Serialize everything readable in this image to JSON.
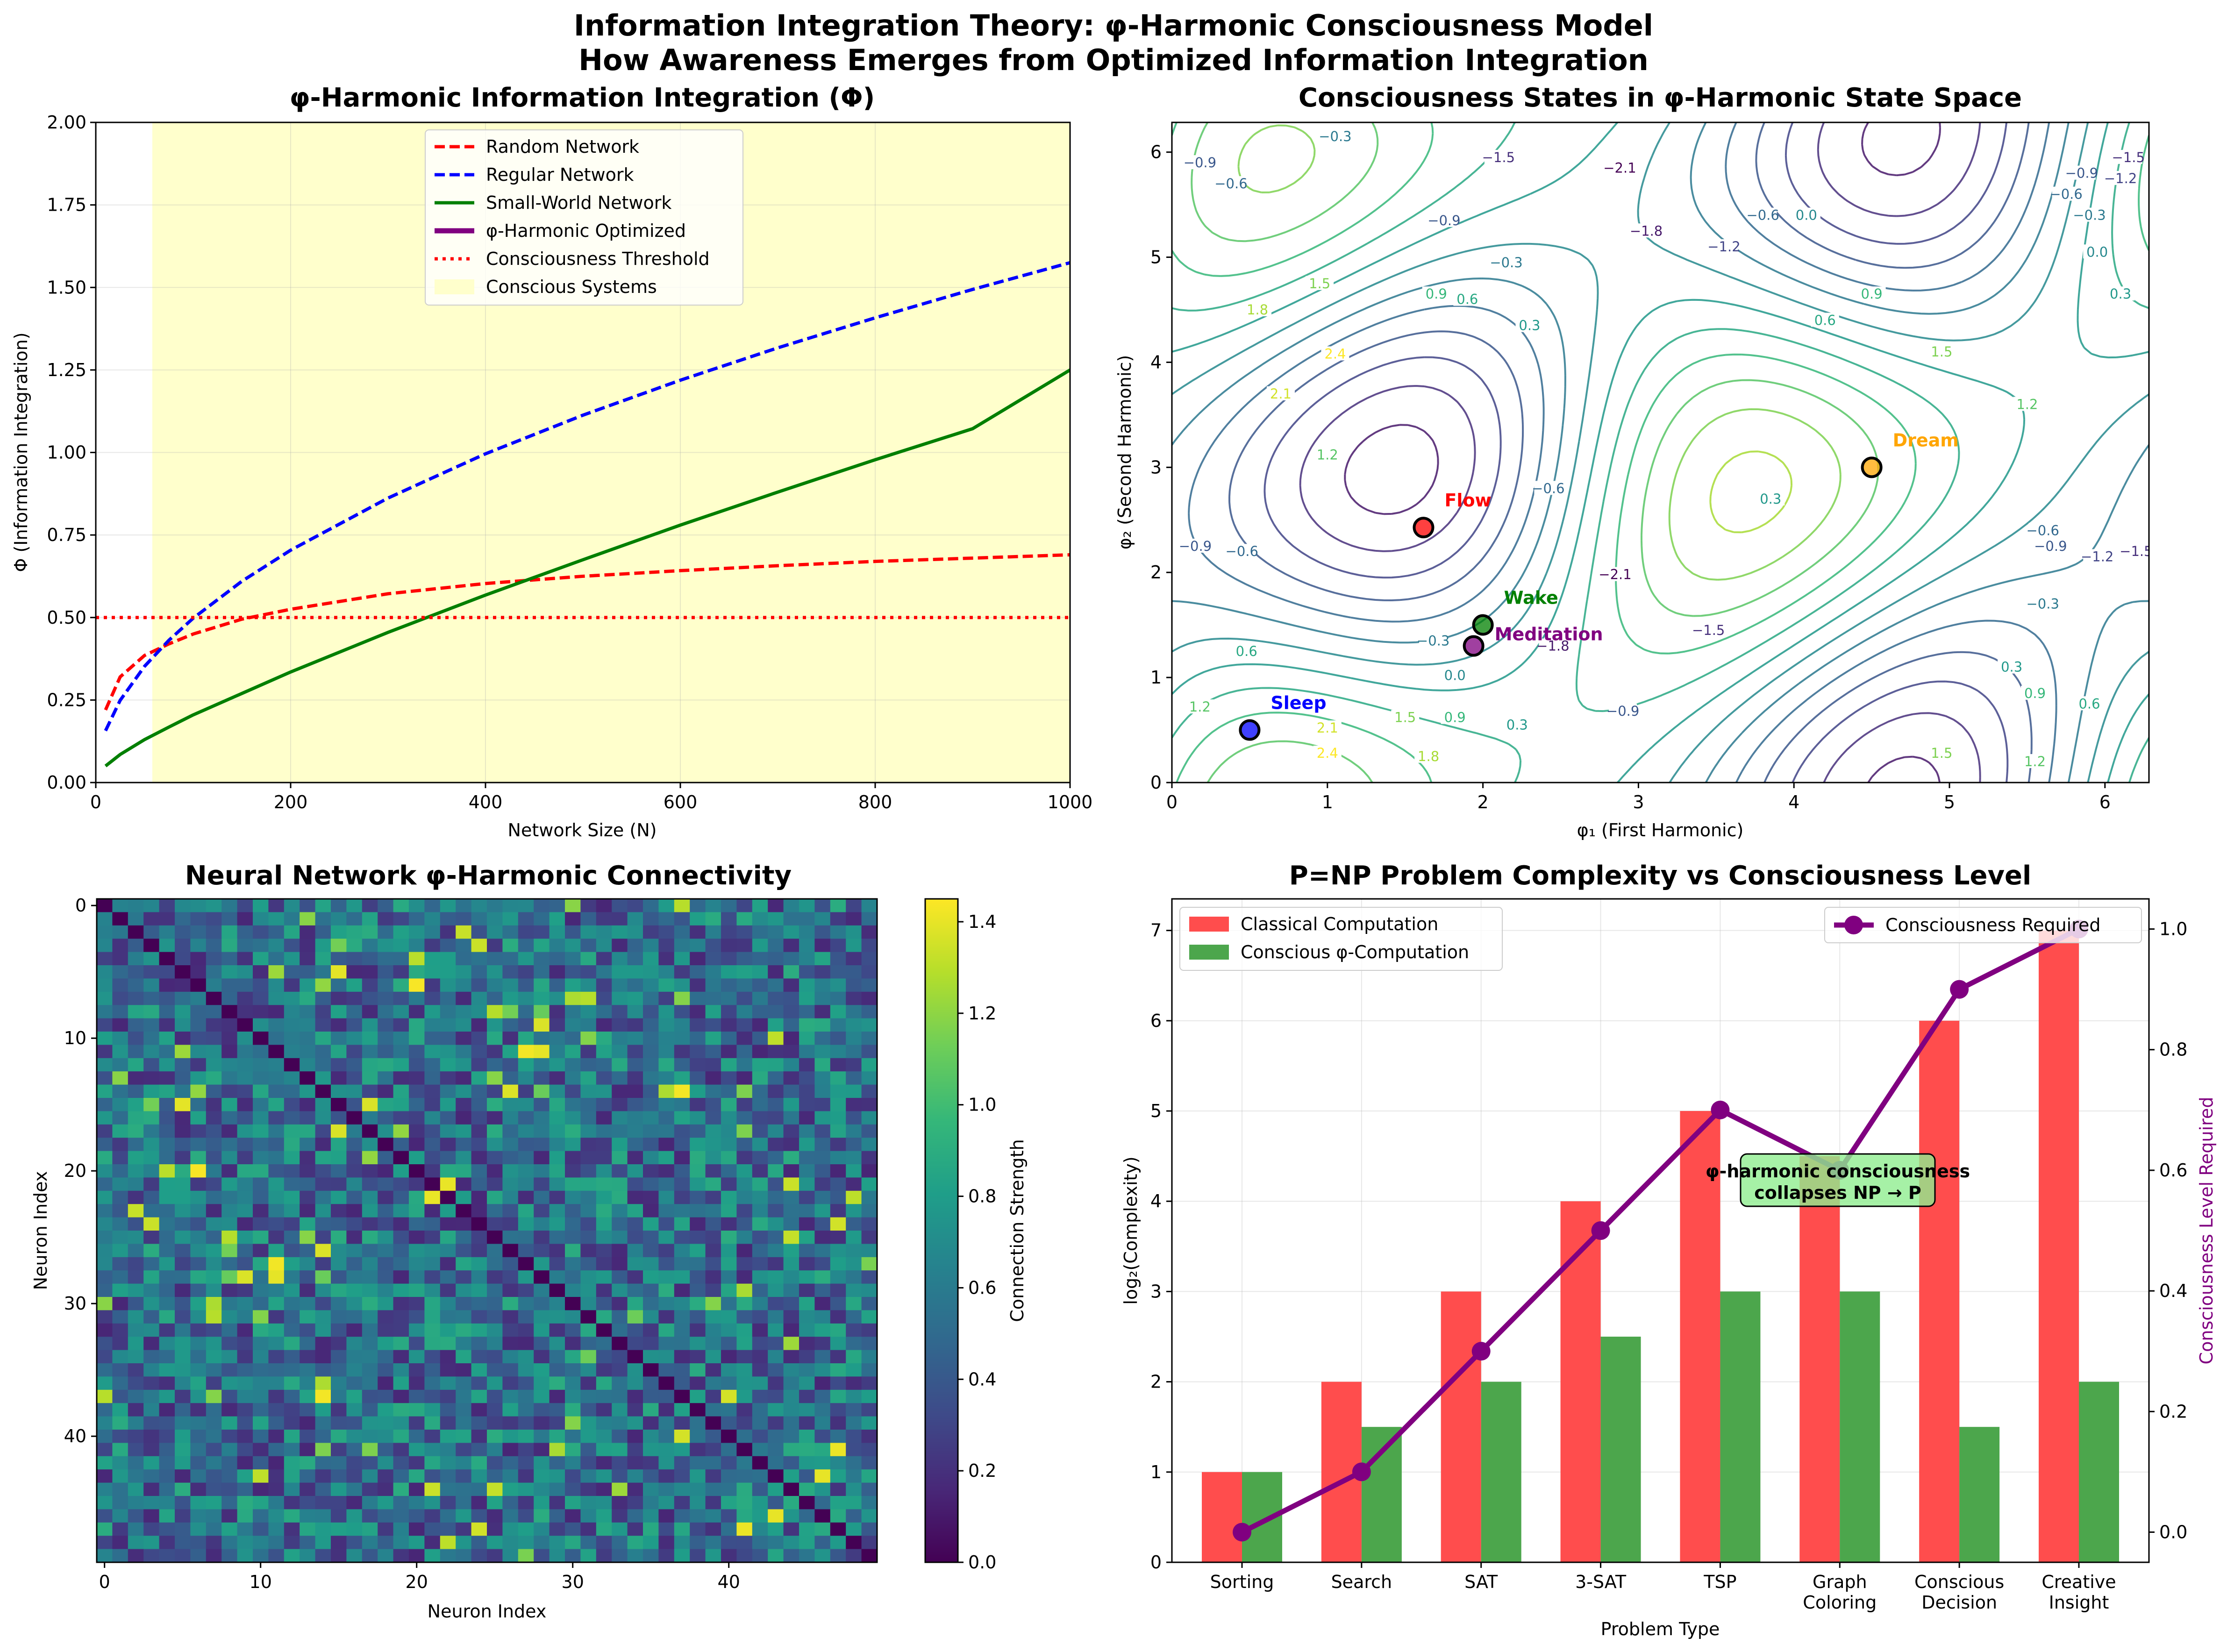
{
  "figure": {
    "title_line1": "Information Integration Theory: φ-Harmonic Consciousness Model",
    "title_line2": "How Awareness Emerges from Optimized Information Integration"
  },
  "chart_data": [
    {
      "type": "line",
      "title": "φ-Harmonic Information Integration (Φ)",
      "xlabel": "Network Size (N)",
      "ylabel": "Φ (Information Integration)",
      "xlim": [
        0,
        1000
      ],
      "ylim": [
        0,
        2.0
      ],
      "xticks": [
        "0",
        "200",
        "400",
        "600",
        "800",
        "1000"
      ],
      "yticks": [
        "0.00",
        "0.25",
        "0.50",
        "0.75",
        "1.00",
        "1.25",
        "1.50",
        "1.75",
        "2.00"
      ],
      "grid": true,
      "legend_position": "top-center",
      "shaded_region": {
        "label": "Conscious Systems",
        "x_from": 58,
        "x_to": 1000,
        "color": "#ffffcc"
      },
      "threshold": {
        "label": "Consciousness Threshold",
        "y": 0.5,
        "color": "#ff0000"
      },
      "series": [
        {
          "name": "Random Network",
          "color": "#ff0000",
          "style": "dashed",
          "x": [
            10,
            25,
            50,
            75,
            100,
            150,
            200,
            300,
            400,
            500,
            600,
            700,
            800,
            900,
            1000
          ],
          "y": [
            0.22,
            0.32,
            0.385,
            0.42,
            0.45,
            0.495,
            0.525,
            0.572,
            0.603,
            0.625,
            0.642,
            0.657,
            0.67,
            0.68,
            0.69
          ]
        },
        {
          "name": "Regular Network",
          "color": "#0000ff",
          "style": "dashed",
          "x": [
            10,
            25,
            50,
            75,
            100,
            150,
            200,
            300,
            400,
            500,
            600,
            700,
            800,
            900,
            1000
          ],
          "y": [
            0.157,
            0.249,
            0.352,
            0.431,
            0.498,
            0.61,
            0.704,
            0.862,
            0.996,
            1.113,
            1.219,
            1.317,
            1.408,
            1.494,
            1.575
          ]
        },
        {
          "name": "Small-World Network",
          "color": "#007f00",
          "style": "solid",
          "x": [
            10,
            25,
            50,
            75,
            100,
            150,
            200,
            300,
            400,
            500,
            600,
            700,
            800,
            900,
            1000
          ],
          "y": [
            0.05,
            0.085,
            0.13,
            0.168,
            0.205,
            0.27,
            0.335,
            0.455,
            0.568,
            0.675,
            0.78,
            0.88,
            0.978,
            1.072,
            1.25
          ]
        },
        {
          "name": "φ-Harmonic Optimized",
          "color": "#800080",
          "style": "solid",
          "x": [],
          "y": []
        }
      ]
    },
    {
      "type": "contour",
      "title": "Consciousness States in φ-Harmonic State Space",
      "xlabel": "φ₁ (First Harmonic)",
      "ylabel": "φ₂ (Second Harmonic)",
      "xlim": [
        0,
        6.283
      ],
      "ylim": [
        0,
        6.283
      ],
      "xticks": [
        "0",
        "1",
        "2",
        "3",
        "4",
        "5",
        "6"
      ],
      "yticks": [
        "0",
        "1",
        "2",
        "3",
        "4",
        "5",
        "6"
      ],
      "levels": [
        -2.1,
        -1.8,
        -1.5,
        -1.2,
        -0.9,
        -0.6,
        -0.3,
        0.0,
        0.3,
        0.6,
        0.9,
        1.2,
        1.5,
        1.8,
        2.1,
        2.4
      ],
      "contour_labels": [
        {
          "text": "−2.1",
          "x": 2.88,
          "y": 5.85
        },
        {
          "text": "−1.8",
          "x": 3.05,
          "y": 5.25
        },
        {
          "text": "−1.5",
          "x": 2.1,
          "y": 5.95
        },
        {
          "text": "−1.2",
          "x": 3.55,
          "y": 5.1
        },
        {
          "text": "−0.9",
          "x": 1.75,
          "y": 5.35
        },
        {
          "text": "−0.6",
          "x": 3.8,
          "y": 5.4
        },
        {
          "text": "−0.3",
          "x": 2.15,
          "y": 4.95
        },
        {
          "text": "0.0",
          "x": 4.08,
          "y": 5.4
        },
        {
          "text": "0.3",
          "x": 2.3,
          "y": 4.35
        },
        {
          "text": "0.6",
          "x": 1.9,
          "y": 4.6
        },
        {
          "text": "0.9",
          "x": 1.7,
          "y": 4.65
        },
        {
          "text": "1.2",
          "x": 1.0,
          "y": 3.12
        },
        {
          "text": "1.5",
          "x": 0.95,
          "y": 4.75
        },
        {
          "text": "1.8",
          "x": 0.55,
          "y": 4.5
        },
        {
          "text": "2.1",
          "x": 0.7,
          "y": 3.7
        },
        {
          "text": "2.4",
          "x": 1.05,
          "y": 4.08
        },
        {
          "text": "−0.9",
          "x": 0.18,
          "y": 5.9
        },
        {
          "text": "−0.6",
          "x": 0.38,
          "y": 5.7
        },
        {
          "text": "−0.3",
          "x": 1.05,
          "y": 6.15
        },
        {
          "text": "0.6",
          "x": 4.2,
          "y": 4.4
        },
        {
          "text": "0.9",
          "x": 4.5,
          "y": 4.65
        },
        {
          "text": "1.5",
          "x": 4.95,
          "y": 4.1
        },
        {
          "text": "1.2",
          "x": 5.5,
          "y": 3.6
        },
        {
          "text": "0.3",
          "x": 6.1,
          "y": 4.65
        },
        {
          "text": "0.0",
          "x": 5.95,
          "y": 5.05
        },
        {
          "text": "−0.3",
          "x": 5.9,
          "y": 5.4
        },
        {
          "text": "−0.6",
          "x": 5.75,
          "y": 5.6
        },
        {
          "text": "−0.9",
          "x": 5.85,
          "y": 5.8
        },
        {
          "text": "−1.2",
          "x": 6.1,
          "y": 5.75
        },
        {
          "text": "−1.5",
          "x": 6.15,
          "y": 5.95
        },
        {
          "text": "−0.6",
          "x": 2.42,
          "y": 2.8
        },
        {
          "text": "−2.1",
          "x": 2.85,
          "y": 1.98
        },
        {
          "text": "−1.8",
          "x": 2.45,
          "y": 1.3
        },
        {
          "text": "−1.5",
          "x": 3.45,
          "y": 1.45
        },
        {
          "text": "−0.9",
          "x": 2.9,
          "y": 0.68
        },
        {
          "text": "−0.3",
          "x": 1.68,
          "y": 1.35
        },
        {
          "text": "0.0",
          "x": 1.82,
          "y": 1.02
        },
        {
          "text": "0.3",
          "x": 2.22,
          "y": 0.55
        },
        {
          "text": "0.9",
          "x": 1.82,
          "y": 0.62
        },
        {
          "text": "0.6",
          "x": 0.48,
          "y": 1.25
        },
        {
          "text": "1.2",
          "x": 0.18,
          "y": 0.72
        },
        {
          "text": "1.5",
          "x": 1.5,
          "y": 0.62
        },
        {
          "text": "1.8",
          "x": 1.65,
          "y": 0.25
        },
        {
          "text": "2.1",
          "x": 1.0,
          "y": 0.52
        },
        {
          "text": "2.4",
          "x": 1.0,
          "y": 0.28
        },
        {
          "text": "0.3",
          "x": 3.85,
          "y": 2.7
        },
        {
          "text": "−0.9",
          "x": 0.15,
          "y": 2.25
        },
        {
          "text": "−0.6",
          "x": 0.45,
          "y": 2.2
        },
        {
          "text": "−0.9",
          "x": 5.65,
          "y": 2.25
        },
        {
          "text": "−1.2",
          "x": 5.95,
          "y": 2.15
        },
        {
          "text": "−0.6",
          "x": 5.6,
          "y": 2.4
        },
        {
          "text": "−0.3",
          "x": 5.6,
          "y": 1.7
        },
        {
          "text": "−1.5",
          "x": 6.2,
          "y": 2.2
        },
        {
          "text": "0.3",
          "x": 5.4,
          "y": 1.1
        },
        {
          "text": "0.6",
          "x": 5.9,
          "y": 0.75
        },
        {
          "text": "0.9",
          "x": 5.55,
          "y": 0.85
        },
        {
          "text": "1.5",
          "x": 4.95,
          "y": 0.28
        },
        {
          "text": "1.2",
          "x": 5.55,
          "y": 0.2
        }
      ],
      "points": [
        {
          "name": "Sleep",
          "x": 0.5,
          "y": 0.5,
          "color": "#0000ff"
        },
        {
          "name": "Flow",
          "x": 1.618,
          "y": 2.427,
          "color": "#ff0000"
        },
        {
          "name": "Wake",
          "x": 2.0,
          "y": 1.5,
          "color": "#008000"
        },
        {
          "name": "Meditation",
          "x": 1.94,
          "y": 1.3,
          "color": "#800080"
        },
        {
          "name": "Dream",
          "x": 4.5,
          "y": 3.0,
          "color": "#ffa500"
        }
      ]
    },
    {
      "type": "heatmap",
      "title": "Neural Network φ-Harmonic Connectivity",
      "xlabel": "Neuron Index",
      "ylabel": "Neuron Index",
      "size": 50,
      "colormap": "viridis",
      "vmin": 0.0,
      "vmax": 1.45,
      "xticks": [
        "0",
        "10",
        "20",
        "30",
        "40"
      ],
      "yticks": [
        "0",
        "10",
        "20",
        "30",
        "40"
      ],
      "colorbar_label": "Connection Strength",
      "colorbar_ticks": [
        "0.0",
        "0.2",
        "0.4",
        "0.6",
        "0.8",
        "1.0",
        "1.2",
        "1.4"
      ],
      "diagonal_value": 0.0
    },
    {
      "type": "bar",
      "title": "P=NP Problem Complexity vs Consciousness Level",
      "xlabel": "Problem Type",
      "ylabel": "log₂(Complexity)",
      "y2label": "Consciousness Level Required",
      "categories": [
        "Sorting",
        "Search",
        "SAT",
        "3-SAT",
        "TSP",
        "Graph\nColoring",
        "Conscious\nDecision",
        "Creative\nInsight"
      ],
      "ylim": [
        0,
        7.35
      ],
      "y2lim": [
        -0.05,
        1.05
      ],
      "yticks": [
        "0",
        "1",
        "2",
        "3",
        "4",
        "5",
        "6",
        "7"
      ],
      "y2ticks": [
        "0.0",
        "0.2",
        "0.4",
        "0.6",
        "0.8",
        "1.0"
      ],
      "grid": true,
      "series": [
        {
          "name": "Classical Computation",
          "color": "#ff4d4d",
          "values": [
            1,
            2,
            3,
            4,
            5,
            4.5,
            6,
            7
          ]
        },
        {
          "name": "Conscious φ-Computation",
          "color": "#4ca64c",
          "values": [
            1,
            1.5,
            2,
            2.5,
            3,
            3,
            1.5,
            2
          ]
        }
      ],
      "line_series": {
        "name": "Consciousness Required",
        "color": "#800080",
        "values": [
          0.0,
          0.1,
          0.3,
          0.5,
          0.7,
          0.6,
          0.9,
          1.0
        ]
      },
      "annotation": "φ-harmonic consciousness\ncollapses NP → P",
      "legend_positions": [
        "top-left",
        "top-right"
      ]
    }
  ]
}
